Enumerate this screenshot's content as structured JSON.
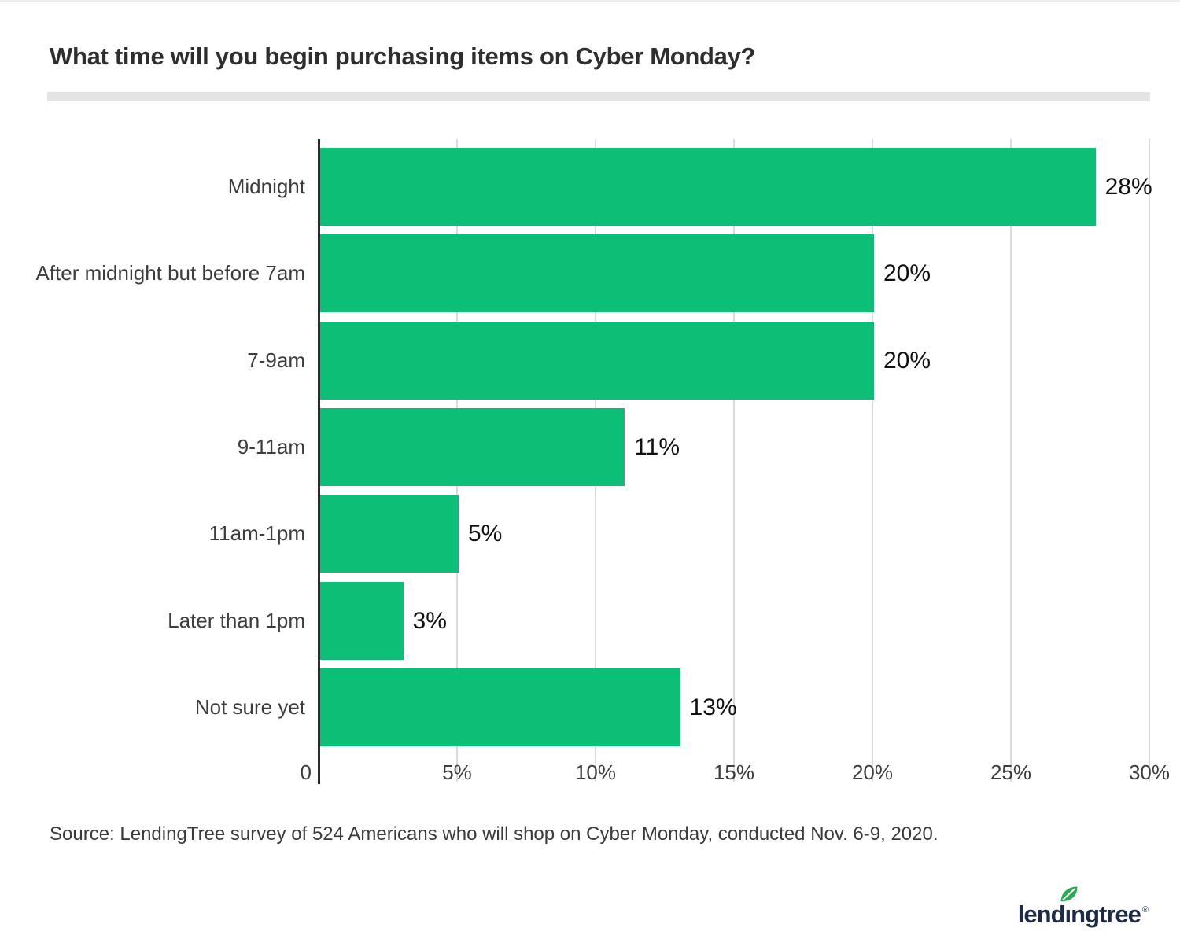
{
  "title": "What time will you begin purchasing items on Cyber Monday?",
  "source": "Source: LendingTree survey of 524 Americans who will shop on Cyber Monday, conducted Nov. 6-9, 2020.",
  "logo": {
    "brand": "lendingtree",
    "brand_pre": "lend",
    "brand_i": "ı",
    "brand_post": "ngtree",
    "registered": "®",
    "leaf_icon": "leaf-icon"
  },
  "colors": {
    "bar": "#0dbe76",
    "axis": "#2b2b2b",
    "gridline": "#dadada",
    "divider": "#e4e4e4",
    "title_text": "#2e2e2e",
    "label_text": "#3d3d3d",
    "value_text": "#111111",
    "logo_navy": "#1e2b47",
    "leaf_green": "#2aab58"
  },
  "chart_data": {
    "type": "bar",
    "orientation": "horizontal",
    "title": "What time will you begin purchasing items on Cyber Monday?",
    "categories": [
      "Midnight",
      "After midnight but before 7am",
      "7-9am",
      "9-11am",
      "11am-1pm",
      "Later than 1pm",
      "Not sure yet"
    ],
    "values": [
      28,
      20,
      20,
      11,
      5,
      3,
      13
    ],
    "value_labels": [
      "28%",
      "20%",
      "20%",
      "11%",
      "5%",
      "3%",
      "13%"
    ],
    "x_ticks": [
      "0",
      "5%",
      "10%",
      "15%",
      "20%",
      "25%",
      "30%"
    ],
    "x_tick_values": [
      0,
      5,
      10,
      15,
      20,
      25,
      30
    ],
    "xlim": [
      0,
      30
    ],
    "grid": true,
    "legend": "none",
    "unit": "percent"
  }
}
